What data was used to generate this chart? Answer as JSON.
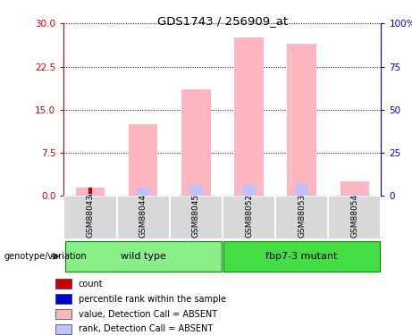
{
  "title": "GDS1743 / 256909_at",
  "samples": [
    "GSM88043",
    "GSM88044",
    "GSM88045",
    "GSM88052",
    "GSM88053",
    "GSM88054"
  ],
  "pink_bar_values": [
    1.5,
    12.5,
    18.5,
    27.5,
    26.5,
    2.5
  ],
  "blue_rank_values": [
    1.0,
    5.0,
    6.5,
    6.5,
    7.0,
    1.0
  ],
  "red_count_values": [
    1.5,
    0.15,
    0.15,
    0.15,
    0.15,
    0.15
  ],
  "blue_pct_values": [
    0.8,
    0.15,
    0.15,
    0.15,
    0.15,
    0.15
  ],
  "ylim_left": [
    0,
    30
  ],
  "ylim_right": [
    0,
    100
  ],
  "yticks_left": [
    0,
    7.5,
    15,
    22.5,
    30
  ],
  "yticks_right": [
    0,
    25,
    50,
    75,
    100
  ],
  "ytick_labels_right": [
    "0",
    "25",
    "50",
    "75",
    "100%"
  ],
  "groups": [
    {
      "label": "wild type",
      "n": 3,
      "color": "#88EE88"
    },
    {
      "label": "fbp7-3 mutant",
      "n": 3,
      "color": "#44DD44"
    }
  ],
  "legend_items": [
    {
      "label": "count",
      "color": "#CC0000"
    },
    {
      "label": "percentile rank within the sample",
      "color": "#0000CC"
    },
    {
      "label": "value, Detection Call = ABSENT",
      "color": "#FFB6C1"
    },
    {
      "label": "rank, Detection Call = ABSENT",
      "color": "#C0C0FF"
    }
  ],
  "genotype_label": "genotype/variation",
  "left_axis_color": "#CC0000",
  "right_axis_color": "#0000CC",
  "pink_color": "#FFB6C1",
  "blue_rank_color": "#C0C0FF",
  "red_count_color": "#CC0000",
  "blue_pct_color": "#0000AA",
  "cell_bg": "#D8D8D8",
  "plot_bg": "#FFFFFF"
}
